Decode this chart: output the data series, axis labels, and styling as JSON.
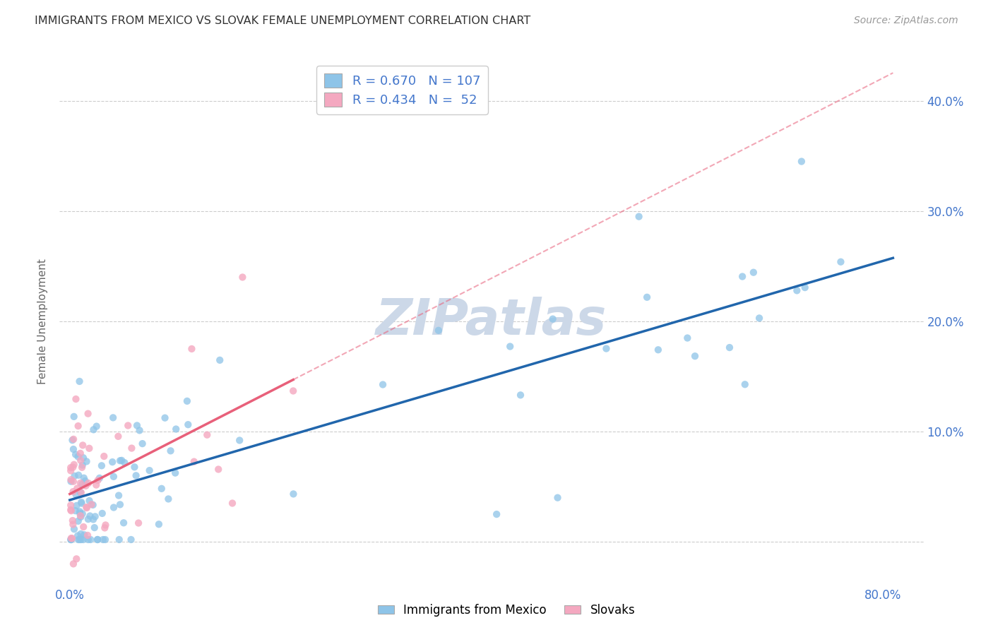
{
  "title": "IMMIGRANTS FROM MEXICO VS SLOVAK FEMALE UNEMPLOYMENT CORRELATION CHART",
  "source": "Source: ZipAtlas.com",
  "ylabel": "Female Unemployment",
  "xlim": [
    -0.01,
    0.84
  ],
  "ylim": [
    -0.04,
    0.44
  ],
  "blue_color": "#8ec4e8",
  "pink_color": "#f4a8c0",
  "blue_line_color": "#2166ac",
  "pink_line_color": "#e8607a",
  "legend_R_blue": "0.670",
  "legend_N_blue": "107",
  "legend_R_pink": "0.434",
  "legend_N_pink": " 52",
  "blue_label": "Immigrants from Mexico",
  "pink_label": "Slovaks",
  "background_color": "#ffffff",
  "grid_color": "#cccccc",
  "title_color": "#333333",
  "axis_label_color": "#4477cc",
  "watermark": "ZIPatlas",
  "watermark_color": "#ccd8e8",
  "ytick_vals": [
    0.0,
    0.1,
    0.2,
    0.3,
    0.4
  ],
  "ytick_right_labels": [
    "",
    "10.0%",
    "20.0%",
    "30.0%",
    "40.0%"
  ],
  "xtick_edge_left": "0.0%",
  "xtick_edge_right": "80.0%"
}
